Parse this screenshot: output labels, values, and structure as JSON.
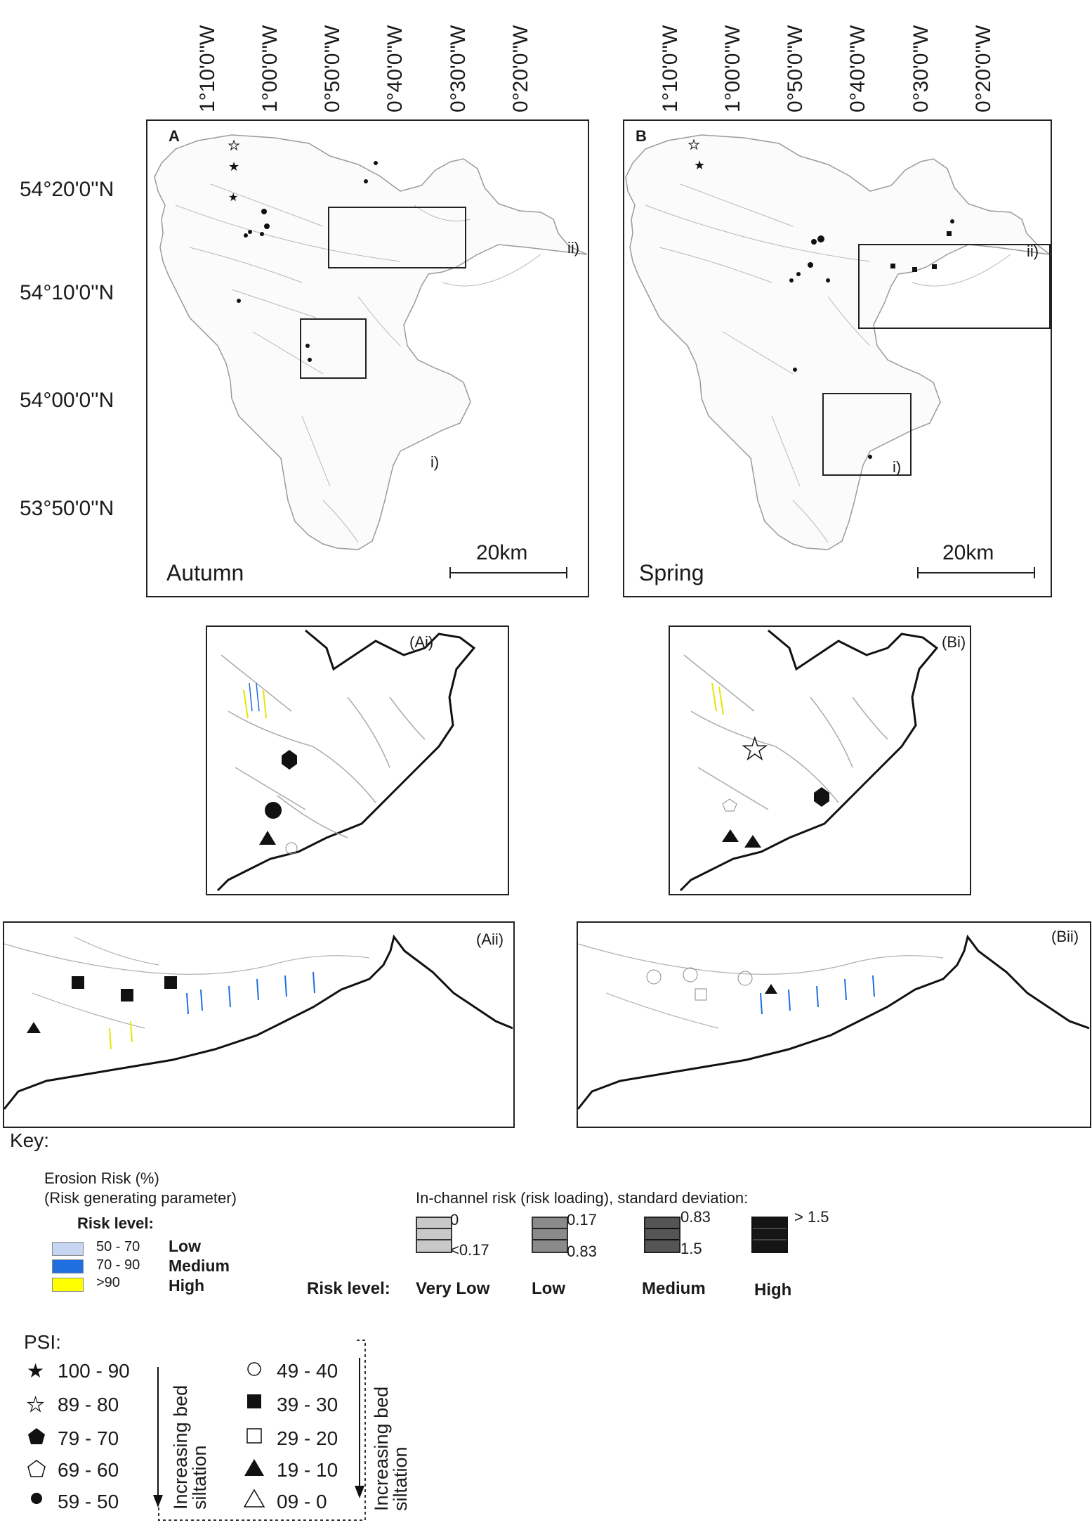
{
  "longitudes": [
    "1°10'0''W",
    "1°00'0''W",
    "0°50'0''W",
    "0°40'0''W",
    "0°30'0''W",
    "0°20'0''W"
  ],
  "latitudes": [
    "54°20'0''N",
    "54°10'0''N",
    "54°00'0''N",
    "53°50'0''N"
  ],
  "panels": {
    "A": {
      "letter": "A",
      "season": "Autumn",
      "scale": "20km",
      "box_i": "i)",
      "box_ii": "ii)"
    },
    "B": {
      "letter": "B",
      "season": "Spring",
      "scale": "20km",
      "box_i": "i)",
      "box_ii": "ii)"
    }
  },
  "insets": {
    "Ai": "(Ai)",
    "Bi": "(Bi)",
    "Aii": "(Aii)",
    "Bii": "(Bii)"
  },
  "key": {
    "title": "Key:",
    "erosion": {
      "title": "Erosion Risk (%)",
      "subtitle": "(Risk generating parameter)",
      "risk_level_header": "Risk level:",
      "items": [
        {
          "range": "50 - 70",
          "level": "Low",
          "color": "#c6d6f2"
        },
        {
          "range": "70 - 90",
          "level": "Medium",
          "color": "#1f6fe0"
        },
        {
          "range": ">90",
          "level": "High",
          "color": "#ffff00"
        }
      ]
    },
    "in_channel": {
      "title": "In-channel risk (risk loading), standard deviation:",
      "risk_level_label": "Risk level:",
      "items": [
        {
          "top": "0",
          "bottom": "<0.17",
          "level": "Very Low",
          "color": "#c8c8c8"
        },
        {
          "top": "0.17",
          "bottom": "0.83",
          "level": "Low",
          "color": "#8a8a8a"
        },
        {
          "top": "0.83",
          "bottom": "1.5",
          "level": "Medium",
          "color": "#555555"
        },
        {
          "top": "> 1.5",
          "bottom": "",
          "level": "High",
          "color": "#151515"
        }
      ]
    },
    "psi": {
      "title": "PSI:",
      "left": [
        {
          "range": "100 - 90",
          "symbol": "filled-star-icon"
        },
        {
          "range": "89 - 80",
          "symbol": "open-star-icon"
        },
        {
          "range": "79 - 70",
          "symbol": "filled-pentagon-icon"
        },
        {
          "range": "69 - 60",
          "symbol": "open-pentagon-icon"
        },
        {
          "range": "59 - 50",
          "symbol": "filled-circle-icon"
        }
      ],
      "right": [
        {
          "range": "49 - 40",
          "symbol": "open-circle-icon"
        },
        {
          "range": "39 - 30",
          "symbol": "filled-square-icon"
        },
        {
          "range": "29 - 20",
          "symbol": "open-square-icon"
        },
        {
          "range": "19 - 10",
          "symbol": "filled-triangle-icon"
        },
        {
          "range": "09 - 0",
          "symbol": "open-triangle-icon"
        }
      ],
      "arrow_label_1": "Increasing bed",
      "arrow_label_2": "siltation"
    }
  }
}
